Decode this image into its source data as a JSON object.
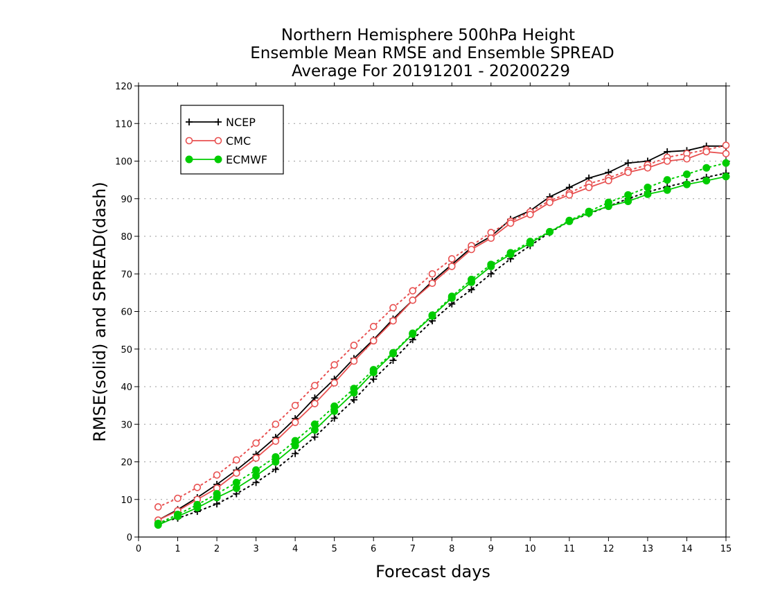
{
  "chart_data": {
    "type": "line",
    "title_lines": [
      "Northern Hemisphere 500hPa Height",
      "Ensemble Mean RMSE and Ensemble SPREAD",
      "Average For 20191201 - 20200229"
    ],
    "xlabel": "Forecast days",
    "ylabel": "RMSE(solid) and SPREAD(dash)",
    "xlim": [
      0,
      15
    ],
    "ylim": [
      0,
      120
    ],
    "xticks": [
      "0",
      "1",
      "2",
      "3",
      "4",
      "5",
      "6",
      "7",
      "8",
      "9",
      "10",
      "11",
      "12",
      "13",
      "14",
      "15"
    ],
    "yticks": [
      "0",
      "10",
      "20",
      "30",
      "40",
      "50",
      "60",
      "70",
      "80",
      "90",
      "100",
      "110",
      "120"
    ],
    "grid": "horizontal-dotted",
    "legend_position": "top-left",
    "x": [
      0.5,
      1,
      1.5,
      2,
      2.5,
      3,
      3.5,
      4,
      4.5,
      5,
      5.5,
      6,
      6.5,
      7,
      7.5,
      8,
      8.5,
      9,
      9.5,
      10,
      10.5,
      11,
      11.5,
      12,
      12.5,
      13,
      13.5,
      14,
      14.5,
      15
    ],
    "series": [
      {
        "name": "NCEP",
        "color": "#000000",
        "marker": "plus",
        "rmse": [
          4.5,
          7.3,
          10.5,
          14,
          17.8,
          22,
          26.5,
          31.5,
          37,
          42,
          47.5,
          52.5,
          58,
          63,
          68,
          72.5,
          77,
          80,
          84.5,
          86.8,
          90.5,
          93,
          95.5,
          97,
          99.5,
          100,
          102.5,
          102.8,
          104,
          104
        ],
        "spread": [
          3.8,
          5,
          6.8,
          8.8,
          11.5,
          14.5,
          18,
          22.2,
          26.6,
          31.6,
          36.5,
          42,
          47,
          52.5,
          57.5,
          62,
          65.8,
          70,
          74,
          77.5,
          81,
          84,
          86,
          88,
          90,
          91.8,
          93.2,
          94.4,
          95.7,
          96.8
        ]
      },
      {
        "name": "CMC",
        "color": "#e85050",
        "marker": "circle",
        "rmse": [
          4.5,
          7,
          10,
          13,
          17,
          21,
          25.5,
          30.5,
          35.5,
          41,
          46.8,
          52.2,
          57.5,
          63,
          67.5,
          72,
          76.5,
          79.5,
          83.5,
          85.8,
          89,
          91,
          93,
          94.8,
          97,
          98.2,
          100,
          100.6,
          102.5,
          102
        ],
        "spread": [
          8,
          10.3,
          13.2,
          16.5,
          20.5,
          25,
          30,
          35,
          40.3,
          45.8,
          51,
          56,
          61,
          65.5,
          70,
          74,
          77.5,
          81,
          84,
          86.5,
          89.5,
          91.5,
          94,
          95.5,
          97.5,
          99,
          101,
          102,
          103,
          104.2
        ]
      },
      {
        "name": "ECMWF",
        "color": "#00cc00",
        "marker": "dot",
        "rmse": [
          3.2,
          5.5,
          7.8,
          10.5,
          13,
          16.3,
          20,
          24.3,
          28.5,
          33.5,
          38.4,
          43.8,
          48.8,
          54,
          58.8,
          63.6,
          67.8,
          72,
          75.2,
          78.2,
          81.2,
          84,
          86.2,
          88,
          89.3,
          91.2,
          92.3,
          93.8,
          94.8,
          95.9
        ],
        "spread": [
          3.6,
          6,
          8.6,
          11.5,
          14.5,
          17.8,
          21.3,
          25.6,
          30,
          34.8,
          39.5,
          44.5,
          49,
          54.2,
          59,
          64,
          68.5,
          72.5,
          75.6,
          78.6,
          81.2,
          84.2,
          86.6,
          89,
          91,
          93,
          95,
          96.5,
          98.2,
          99.5
        ]
      }
    ]
  }
}
